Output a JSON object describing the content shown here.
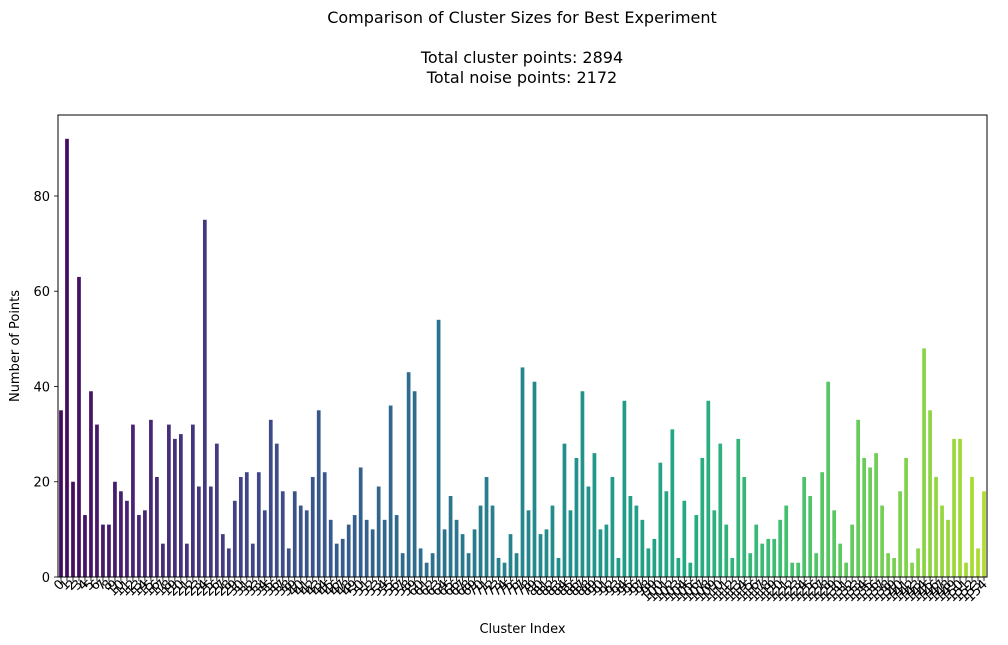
{
  "chart_data": {
    "type": "bar",
    "title": "Comparison of Cluster Sizes for Best Experiment",
    "subtitle_lines": [
      "Total cluster points: 2894",
      "Total noise points: 2172"
    ],
    "xlabel": "Cluster Index",
    "ylabel": "Number of Points",
    "ylim": [
      0,
      97
    ],
    "yticks": [
      0,
      20,
      40,
      60,
      80
    ],
    "grid": false,
    "colormap": "viridis",
    "categories_start": 0,
    "values": [
      35,
      92,
      20,
      63,
      13,
      39,
      32,
      11,
      11,
      20,
      18,
      16,
      32,
      13,
      14,
      33,
      21,
      7,
      32,
      29,
      30,
      7,
      32,
      19,
      75,
      19,
      28,
      9,
      6,
      16,
      21,
      22,
      7,
      22,
      14,
      33,
      28,
      18,
      6,
      18,
      15,
      14,
      21,
      35,
      22,
      12,
      7,
      8,
      11,
      13,
      23,
      12,
      10,
      19,
      12,
      36,
      13,
      5,
      43,
      39,
      6,
      3,
      5,
      54,
      10,
      17,
      12,
      9,
      5,
      10,
      15,
      21,
      15,
      4,
      3,
      9,
      5,
      44,
      14,
      41,
      9,
      10,
      15,
      4,
      28,
      14,
      25,
      39,
      19,
      26,
      10,
      11,
      21,
      4,
      37,
      17,
      15,
      12,
      6,
      8,
      24,
      18,
      31,
      4,
      16,
      3,
      13,
      25,
      37,
      14,
      28,
      11,
      4,
      29,
      21,
      5,
      11,
      7,
      8,
      8,
      12,
      15,
      3,
      3,
      21,
      17,
      5,
      22,
      41,
      14,
      7,
      3,
      11,
      33,
      25,
      23,
      26,
      15,
      5,
      4,
      18,
      25,
      3,
      6,
      48,
      35,
      21,
      15,
      12,
      29,
      29,
      3,
      21,
      6,
      18
    ]
  }
}
